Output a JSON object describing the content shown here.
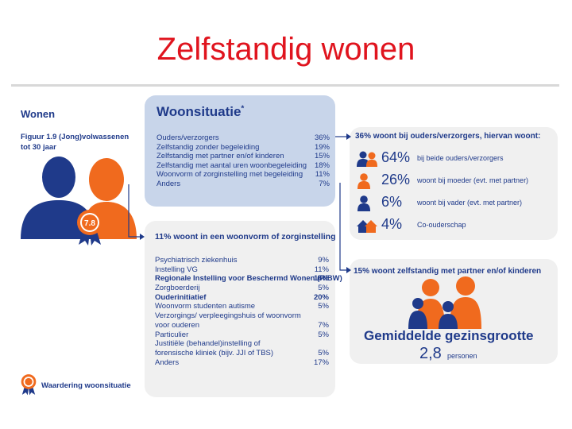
{
  "slide": {
    "title": "Zelfstandig wonen"
  },
  "left": {
    "heading": "Wonen",
    "figure_caption": "Figuur 1.9 (Jong)volwassenen tot 30 jaar",
    "badge_value": "7.8",
    "rating_label": "Waardering woonsituatie"
  },
  "woonsituatie": {
    "title": "Woonsituatie",
    "title_mark": "*",
    "rows": [
      {
        "label": "Ouders/verzorgers",
        "value": "36%"
      },
      {
        "label": "Zelfstandig zonder begeleiding",
        "value": "19%"
      },
      {
        "label": "Zelfstandig met partner en/of kinderen",
        "value": "15%"
      },
      {
        "label": "Zelfstandig met aantal uren woonbegeleiding",
        "value": "18%"
      },
      {
        "label": "Woonvorm of zorginstelling met begeleiding",
        "value": "11%"
      },
      {
        "label": "Anders",
        "value": "7%"
      }
    ]
  },
  "zorginstelling": {
    "heading": "11% woont in een woonvorm of zorginstelling",
    "rows": [
      {
        "label": "Psychiatrisch ziekenhuis",
        "value": "9%",
        "bold": false
      },
      {
        "label": "Instelling VG",
        "value": "11%",
        "bold": false
      },
      {
        "label": "Regionale Instelling voor Beschermd Wonen (RIBW)",
        "value": "16%",
        "bold": true
      },
      {
        "label": "Zorgboerderij",
        "value": "5%",
        "bold": false
      },
      {
        "label": "Ouderinitiatief",
        "value": "20%",
        "bold": true
      },
      {
        "label": "Woonvorm studenten autisme",
        "value": "5%",
        "bold": false
      },
      {
        "label": "Verzorgings/ verpleegingshuis of woonvorm",
        "value": "",
        "bold": false
      },
      {
        "label": "voor ouderen",
        "value": "7%",
        "bold": false
      },
      {
        "label": "Particulier",
        "value": "5%",
        "bold": false
      },
      {
        "label": "Justitiële (behandel)instelling of",
        "value": "",
        "bold": false
      },
      {
        "label": "forensische kliniek (bijv. JJI of TBS)",
        "value": "5%",
        "bold": false
      },
      {
        "label": "Anders",
        "value": "17%",
        "bold": false
      }
    ]
  },
  "ouders": {
    "heading": "36% woont bij ouders/verzorgers, hiervan woont:",
    "items": [
      {
        "pct": "64%",
        "desc": "bij beide ouders/verzorgers",
        "icon": "two-parents-icon"
      },
      {
        "pct": "26%",
        "desc": "woont bij moeder (evt. met partner)",
        "icon": "mother-icon"
      },
      {
        "pct": "6%",
        "desc": "woont bij vader (evt. met partner)",
        "icon": "father-icon"
      },
      {
        "pct": "4%",
        "desc": "Co-ouderschap",
        "icon": "two-houses-icon"
      }
    ]
  },
  "partner": {
    "heading": "15% woont zelfstandig met partner en/of kinderen",
    "size_title": "Gemiddelde gezinsgrootte",
    "size_value": "2,8",
    "size_unit": "personen"
  },
  "colors": {
    "blue": "#1f3a8a",
    "orange": "#f06a1e",
    "red": "#e0141e",
    "panel_blue": "#c8d5ea",
    "panel_grey": "#f0f0f0"
  }
}
